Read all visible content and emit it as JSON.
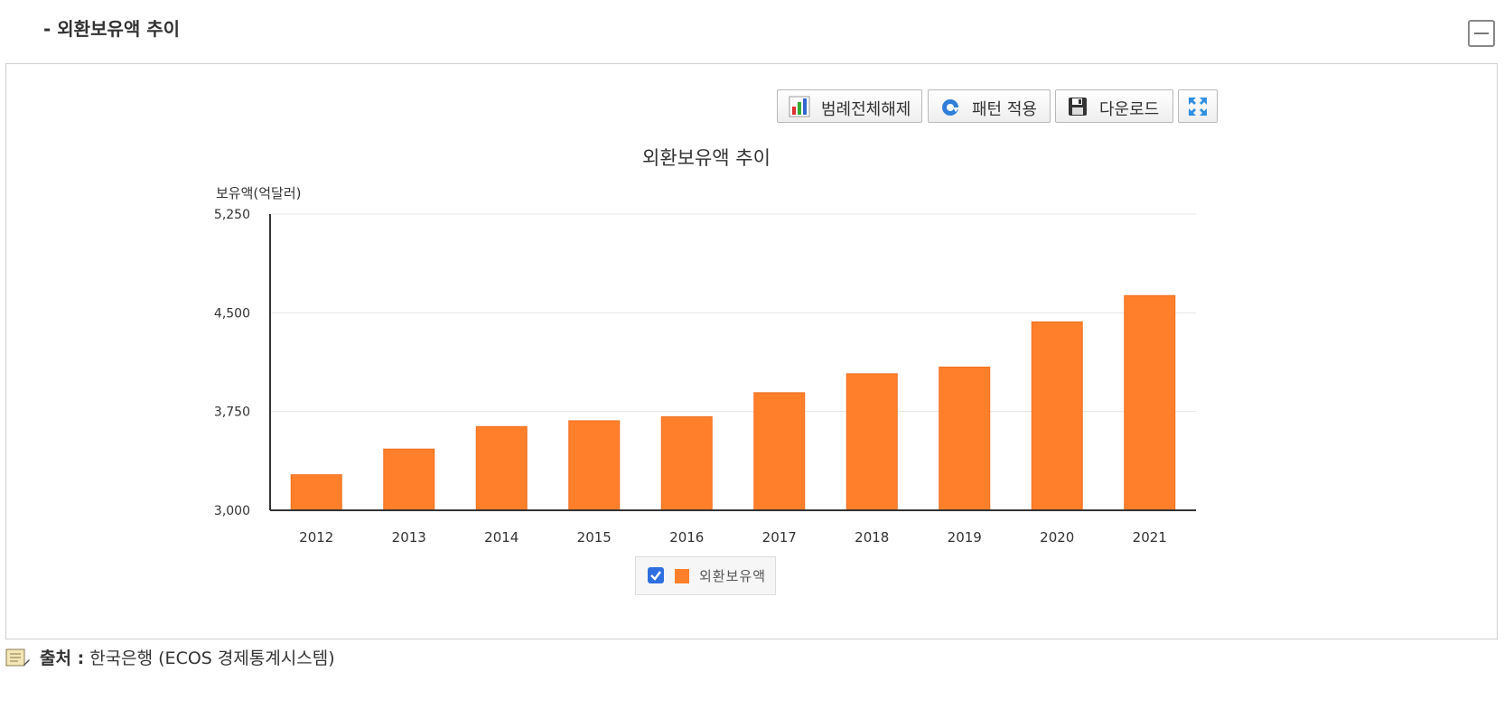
{
  "section": {
    "title": "- 외환보유액 추이"
  },
  "toolbar": {
    "legend_label": "범례전체해제",
    "pattern_label": "패턴 적용",
    "download_label": "다운로드"
  },
  "icons": {
    "collapse": "minus-square-icon",
    "legend": "bar-chart-icon",
    "pattern": "refresh-icon",
    "download": "floppy-disk-icon",
    "expand": "fullscreen-icon",
    "source": "book-icon"
  },
  "chart_data": {
    "type": "bar",
    "title": "외환보유액 추이",
    "ylabel": "보유액(억달러)",
    "xlabel": "",
    "categories": [
      "2012",
      "2013",
      "2014",
      "2015",
      "2016",
      "2017",
      "2018",
      "2019",
      "2020",
      "2021"
    ],
    "series": [
      {
        "name": "외환보유액",
        "color": "#ff7f2a",
        "values": [
          3270,
          3465,
          3636,
          3680,
          3711,
          3893,
          4037,
          4088,
          4431,
          4631
        ]
      }
    ],
    "ylim": [
      3000,
      5250
    ],
    "yticks": [
      3000,
      3750,
      4500,
      5250
    ],
    "ytick_labels": [
      "3,000",
      "3,750",
      "4,500",
      "5,250"
    ],
    "grid": true,
    "legend_position": "bottom-center"
  },
  "legend": {
    "checked": true
  },
  "source": {
    "label": "출처 :",
    "text": "한국은행 (ECOS 경제통계시스템)"
  }
}
